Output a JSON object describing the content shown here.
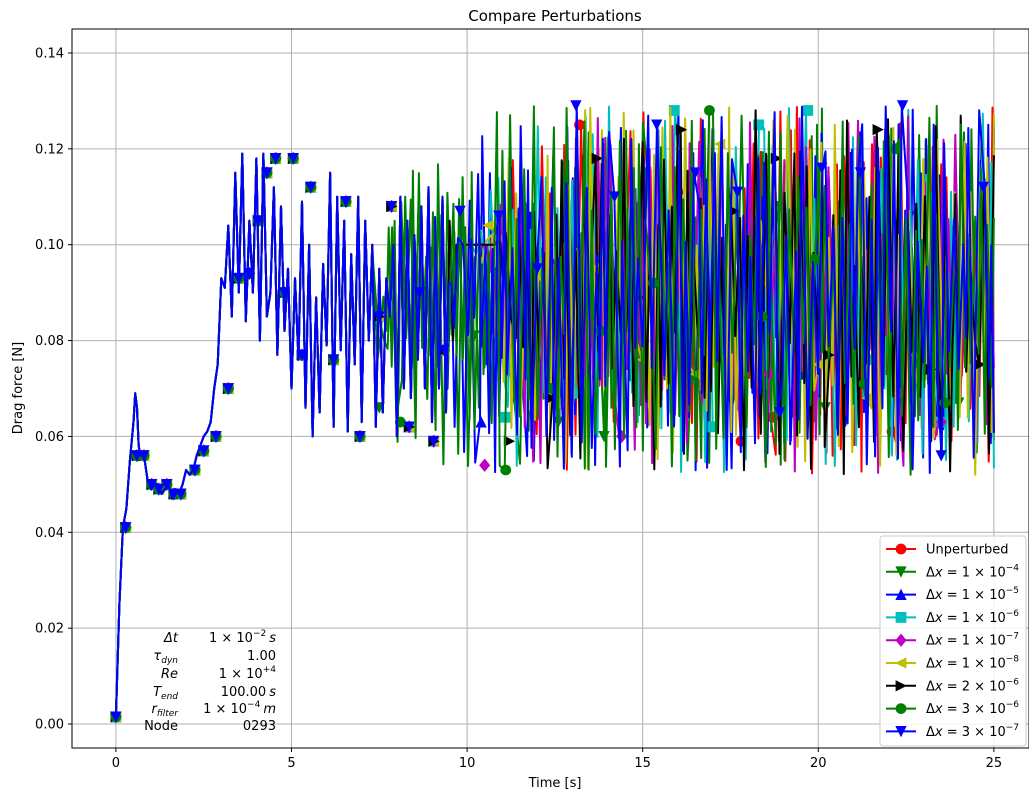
{
  "title": "Compare Perturbations",
  "chart_data": {
    "type": "line",
    "title": "Compare Perturbations",
    "xlabel": "Time [s]",
    "ylabel": "Drag force [N]",
    "xlim": [
      -1.25,
      26.0
    ],
    "ylim": [
      -0.005,
      0.145
    ],
    "xticks": [
      0,
      5,
      10,
      15,
      20,
      25
    ],
    "yticks": [
      0.0,
      0.02,
      0.04,
      0.06,
      0.08,
      0.1,
      0.12,
      0.14
    ],
    "xtick_labels": [
      "0",
      "5",
      "10",
      "15",
      "20",
      "25"
    ],
    "ytick_labels": [
      "0.00",
      "0.02",
      "0.04",
      "0.06",
      "0.08",
      "0.10",
      "0.12",
      "0.14"
    ],
    "grid": true,
    "legend_position": "lower-right",
    "common_base": {
      "x": [
        0.0,
        0.1,
        0.2,
        0.3,
        0.4,
        0.5,
        0.55,
        0.6,
        0.65,
        0.7,
        0.8,
        0.9,
        1.0,
        1.1,
        1.2,
        1.3,
        1.4,
        1.5,
        1.6,
        1.7,
        1.8,
        1.9,
        2.0,
        2.1,
        2.2,
        2.3,
        2.4,
        2.5,
        2.6,
        2.7,
        2.8,
        2.9,
        3.0,
        3.1,
        3.2,
        3.3,
        3.4,
        3.5,
        3.6,
        3.7,
        3.8,
        3.9,
        4.0,
        4.1,
        4.2,
        4.3,
        4.4,
        4.5,
        4.6,
        4.7,
        4.8,
        4.9,
        5.0,
        5.1,
        5.2,
        5.3,
        5.4,
        5.5,
        5.6,
        5.7,
        5.8,
        5.9,
        6.0,
        6.1,
        6.2,
        6.3,
        6.4,
        6.5,
        6.6,
        6.7,
        6.8,
        6.9,
        7.0,
        7.1,
        7.2,
        7.3,
        7.4,
        7.5,
        7.6,
        7.7,
        7.8,
        7.9,
        8.0,
        8.1,
        8.2,
        8.3,
        8.4,
        8.5,
        8.6,
        8.7,
        8.8,
        8.9,
        9.0,
        9.1,
        9.2,
        9.3,
        9.4,
        9.5,
        9.6,
        9.7
      ],
      "y": [
        0.0015,
        0.025,
        0.041,
        0.045,
        0.055,
        0.063,
        0.069,
        0.066,
        0.058,
        0.056,
        0.056,
        0.051,
        0.049,
        0.05,
        0.05,
        0.048,
        0.049,
        0.05,
        0.047,
        0.049,
        0.048,
        0.05,
        0.053,
        0.052,
        0.053,
        0.056,
        0.058,
        0.06,
        0.061,
        0.063,
        0.07,
        0.075,
        0.093,
        0.091,
        0.104,
        0.085,
        0.115,
        0.09,
        0.119,
        0.084,
        0.105,
        0.09,
        0.118,
        0.08,
        0.119,
        0.085,
        0.09,
        0.112,
        0.077,
        0.108,
        0.082,
        0.095,
        0.07,
        0.093,
        0.076,
        0.109,
        0.066,
        0.1,
        0.06,
        0.089,
        0.065,
        0.096,
        0.079,
        0.115,
        0.062,
        0.11,
        0.078,
        0.105,
        0.061,
        0.098,
        0.075,
        0.11,
        0.063,
        0.105,
        0.08,
        0.1,
        0.062,
        0.095,
        0.065,
        0.093,
        0.085,
        0.1,
        0.06,
        0.11,
        0.07,
        0.105,
        0.068,
        0.102,
        0.076,
        0.108,
        0.07,
        0.112,
        0.063,
        0.1,
        0.07,
        0.11,
        0.065,
        0.105,
        0.08,
        0.1
      ],
      "marker_x": [
        0.0,
        0.28,
        0.6,
        0.8,
        1.02,
        1.22,
        1.45,
        1.65,
        1.85,
        2.25,
        2.5,
        2.85,
        3.2,
        3.5,
        3.8,
        4.05,
        4.3,
        4.55,
        4.8,
        5.05,
        5.3,
        5.55,
        6.2,
        6.55,
        6.95,
        7.5,
        7.85,
        8.35,
        8.65,
        9.05,
        9.35
      ],
      "marker_y": [
        0.0015,
        0.041,
        0.056,
        0.056,
        0.05,
        0.049,
        0.05,
        0.048,
        0.048,
        0.053,
        0.057,
        0.06,
        0.07,
        0.093,
        0.094,
        0.105,
        0.115,
        0.118,
        0.09,
        0.118,
        0.077,
        0.112,
        0.076,
        0.109,
        0.06,
        0.085,
        0.108,
        0.062,
        0.09,
        0.059,
        0.078
      ]
    },
    "series": [
      {
        "name": "Unperturbed",
        "color": "#ff0000",
        "marker": "circle",
        "seed": 11,
        "diverge": 10.5,
        "marker_x": [
          10.9,
          11.9,
          13.2,
          14.6,
          16.0,
          17.8,
          18.7,
          20.9,
          22.1
        ],
        "marker_y": [
          0.103,
          0.092,
          0.125,
          0.096,
          0.111,
          0.059,
          0.064,
          0.081,
          0.061
        ]
      },
      {
        "name": "Δx = 1 × 10⁻⁴",
        "color": "#008000",
        "marker": "triangle-down",
        "seed": 23,
        "diverge": 7.2,
        "marker_x": [
          7.5,
          8.7,
          10.2,
          11.4,
          12.6,
          13.9,
          15.1,
          16.4,
          17.6,
          18.9,
          20.2,
          21.3,
          22.6,
          24.0
        ],
        "marker_y": [
          0.066,
          0.089,
          0.081,
          0.067,
          0.063,
          0.06,
          0.115,
          0.072,
          0.07,
          0.108,
          0.066,
          0.079,
          0.106,
          0.067
        ]
      },
      {
        "name": "Δx = 1 × 10⁻⁵",
        "color": "#0000ff",
        "marker": "triangle-up",
        "seed": 37,
        "diverge": 8.6,
        "marker_x": [
          10.4,
          11.6,
          12.8,
          14.0,
          15.3,
          16.6,
          17.9,
          19.3,
          20.7,
          22.2
        ],
        "marker_y": [
          0.063,
          0.073,
          0.104,
          0.107,
          0.072,
          0.097,
          0.08,
          0.088,
          0.096,
          0.081
        ]
      },
      {
        "name": "Δx = 1 × 10⁻⁶",
        "color": "#00bfbf",
        "marker": "square",
        "seed": 41,
        "diverge": 10.2,
        "marker_x": [
          11.1,
          12.5,
          13.1,
          14.5,
          15.9,
          17.0,
          18.3,
          19.7,
          21.5,
          23.5
        ],
        "marker_y": [
          0.064,
          0.067,
          0.069,
          0.082,
          0.128,
          0.062,
          0.125,
          0.128,
          0.076,
          0.063
        ]
      },
      {
        "name": "Δx = 1 × 10⁻⁷",
        "color": "#bf00bf",
        "marker": "diamond",
        "seed": 53,
        "diverge": 10.4,
        "marker_x": [
          10.5,
          11.8,
          13.2,
          14.4,
          16.1,
          17.8,
          18.6,
          20.5,
          22.3,
          23.5,
          24.6
        ],
        "marker_y": [
          0.054,
          0.081,
          0.086,
          0.06,
          0.097,
          0.066,
          0.073,
          0.077,
          0.069,
          0.063,
          0.088
        ]
      },
      {
        "name": "Δx = 1 × 10⁻⁸",
        "color": "#bfbf00",
        "marker": "triangle-left",
        "seed": 67,
        "diverge": 10.3,
        "marker_x": [
          10.6,
          12.1,
          13.6,
          15.0,
          16.5,
          17.2,
          18.5,
          20.0,
          21.4,
          22.8
        ],
        "marker_y": [
          0.104,
          0.093,
          0.095,
          0.076,
          0.073,
          0.121,
          0.092,
          0.075,
          0.068,
          0.077
        ]
      },
      {
        "name": "Δx = 2 × 10⁻⁶",
        "color": "#000000",
        "marker": "triangle-right",
        "seed": 79,
        "diverge": 10.8,
        "marker_x": [
          11.2,
          12.4,
          13.7,
          14.9,
          16.1,
          17.6,
          18.8,
          20.3,
          21.7,
          23.2,
          24.6
        ],
        "marker_y": [
          0.059,
          0.068,
          0.118,
          0.089,
          0.124,
          0.107,
          0.118,
          0.077,
          0.124,
          0.074,
          0.075
        ]
      },
      {
        "name": "Δx = 3 × 10⁻⁶",
        "color": "#008000",
        "marker": "circle",
        "seed": 89,
        "diverge": 7.3,
        "marker_x": [
          8.1,
          9.6,
          11.1,
          12.4,
          13.8,
          15.3,
          16.9,
          18.4,
          19.9,
          21.3,
          22.2,
          23.6
        ],
        "marker_y": [
          0.063,
          0.091,
          0.053,
          0.07,
          0.082,
          0.092,
          0.128,
          0.085,
          0.097,
          0.071,
          0.12,
          0.067
        ]
      },
      {
        "name": "Δx = 3 × 10⁻⁷",
        "color": "#0000ff",
        "marker": "triangle-down",
        "seed": 97,
        "diverge": 9.5,
        "marker_x": [
          9.8,
          10.9,
          12.0,
          13.1,
          14.2,
          15.4,
          16.5,
          17.7,
          18.9,
          20.1,
          21.2,
          22.4,
          23.5,
          24.7
        ],
        "marker_y": [
          0.107,
          0.106,
          0.095,
          0.129,
          0.11,
          0.125,
          0.115,
          0.111,
          0.065,
          0.116,
          0.115,
          0.129,
          0.056,
          0.112
        ]
      }
    ]
  },
  "legend": {
    "items": [
      {
        "label": "Unperturbed",
        "base": "",
        "exp": ""
      },
      {
        "label": "Δx = 1 × 10⁻⁴",
        "base": "1",
        "exp": "−4"
      },
      {
        "label": "Δx = 1 × 10⁻⁵",
        "base": "1",
        "exp": "−5"
      },
      {
        "label": "Δx = 1 × 10⁻⁶",
        "base": "1",
        "exp": "−6"
      },
      {
        "label": "Δx = 1 × 10⁻⁷",
        "base": "1",
        "exp": "−7"
      },
      {
        "label": "Δx = 1 × 10⁻⁸",
        "base": "1",
        "exp": "−8"
      },
      {
        "label": "Δx = 2 × 10⁻⁶",
        "base": "2",
        "exp": "−6"
      },
      {
        "label": "Δx = 3 × 10⁻⁶",
        "base": "3",
        "exp": "−6"
      },
      {
        "label": "Δx = 3 × 10⁻⁷",
        "base": "3",
        "exp": "−7"
      }
    ]
  },
  "params": {
    "dt_key": "Δt",
    "dt_mant": "1 × 10",
    "dt_exp": "−2",
    "dt_unit": "s",
    "tdyn_key": "τ",
    "tdyn_sub": "dyn",
    "tdyn_val": "1.00",
    "re_key": "Re",
    "re_mant": "1 × 10",
    "re_exp": "+4",
    "tend_key": "T",
    "tend_sub": "end",
    "tend_val": "100.00",
    "tend_unit": "s",
    "rf_key": "r",
    "rf_sub": "filter",
    "rf_mant": "1 × 10",
    "rf_exp": "−4",
    "rf_unit": "m",
    "node_key": "Node",
    "node_val": "0293"
  }
}
